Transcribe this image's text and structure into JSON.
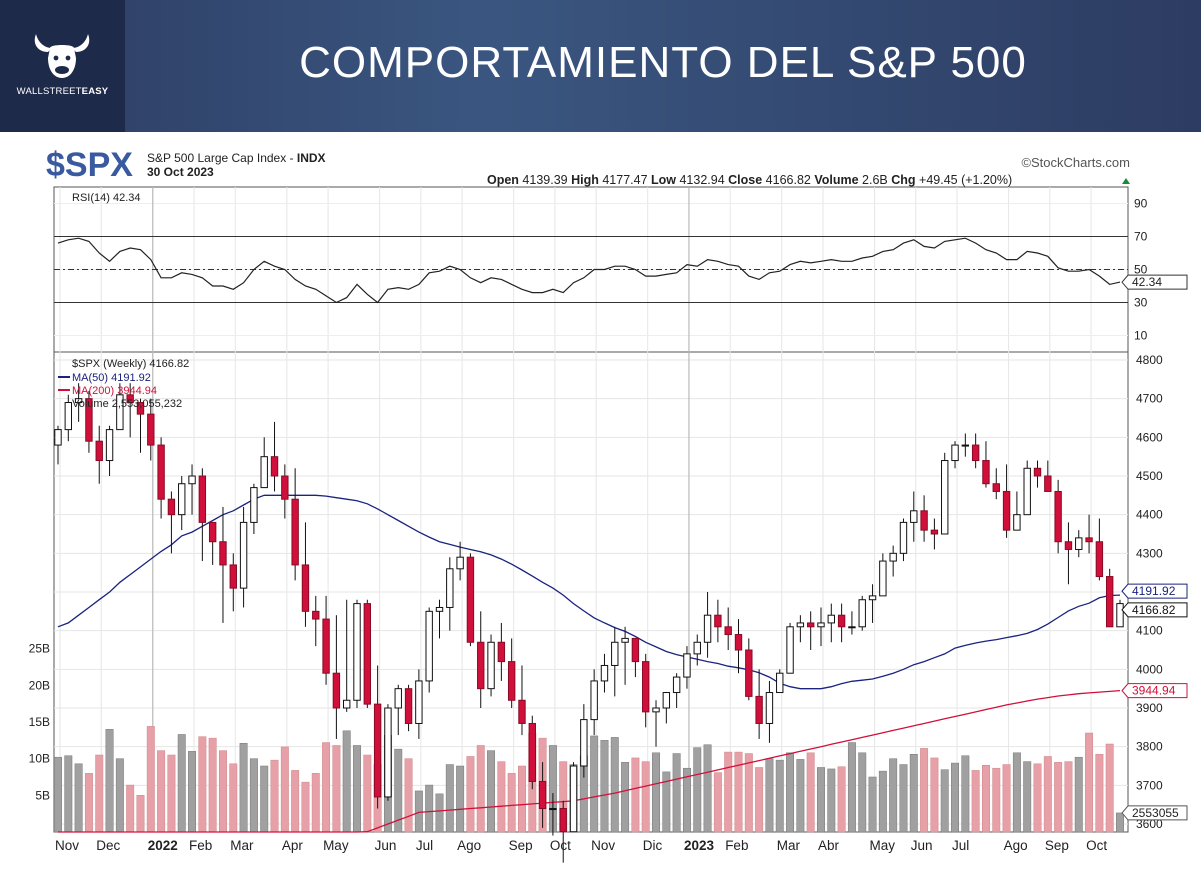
{
  "banner": {
    "title": "COMPORTAMIENTO DEL S&P 500",
    "logo_text_plain": "WALLSTREET",
    "logo_text_bold": "EASY",
    "logo_icon": "bull-head-icon"
  },
  "header": {
    "symbol": "$SPX",
    "name": "S&P 500 Large Cap Index",
    "exchange": "INDX",
    "date": "30 Oct 2023",
    "source": "©StockCharts.com",
    "ohlc_text": [
      {
        "label": "Open",
        "value": "4139.39"
      },
      {
        "label": "High",
        "value": "4177.47"
      },
      {
        "label": "Low",
        "value": "4132.94"
      },
      {
        "label": "Close",
        "value": "4166.82"
      },
      {
        "label": "Volume",
        "value": "2.6B"
      },
      {
        "label": "Chg",
        "value": "+49.45 (+1.20%)"
      }
    ],
    "change_arrow": "up-triangle-icon"
  },
  "legends": {
    "rsi": "RSI(14) 42.34",
    "price": "$SPX (Weekly) 4166.82",
    "ma50": "MA(50) 4191.92",
    "ma200": "MA(200) 3944.94",
    "volume": "Volume 2,553,055,232"
  },
  "axis_tags": {
    "rsi": "42.34",
    "ma50": "4191.92",
    "close": "4166.82",
    "ma200": "3944.94",
    "volume": "2553055"
  },
  "colors": {
    "up": "#ffffff",
    "down": "#d0103a",
    "ma50": "#1a237e",
    "ma200": "#d0103a",
    "vol_up": "#a0a0a0",
    "vol_down": "#e8a0a8",
    "banner": "#2d3c62"
  },
  "chart_data": {
    "type": "candlestick",
    "symbol": "$SPX",
    "timeframe": "Weekly",
    "x_labels": [
      "Nov",
      "Dec",
      "2022",
      "Feb",
      "Mar",
      "Apr",
      "May",
      "Jun",
      "Jul",
      "Ago",
      "Sep",
      "Oct",
      "Nov",
      "Dic",
      "2023",
      "Feb",
      "Mar",
      "Abr",
      "May",
      "Jun",
      "Jul",
      "Ago",
      "Sep",
      "Oct"
    ],
    "x_label_bold": [
      "2022",
      "2023"
    ],
    "price_ticks": [
      3600,
      3700,
      3800,
      3900,
      4000,
      4100,
      4200,
      4300,
      4400,
      4500,
      4600,
      4700,
      4800
    ],
    "price_ylim": [
      3600,
      4800
    ],
    "rsi_ticks": [
      10,
      30,
      50,
      70,
      90
    ],
    "rsi_ylim": [
      0,
      100
    ],
    "rsi_levels": [
      30,
      50,
      70
    ],
    "volume_ticks": [
      "5B",
      "10B",
      "15B",
      "20B",
      "25B"
    ],
    "volume_tick_values": [
      5,
      10,
      15,
      20,
      25
    ],
    "volume_unit": "B",
    "closes": [
      4620,
      4690,
      4700,
      4590,
      4540,
      4620,
      4710,
      4690,
      4660,
      4580,
      4440,
      4400,
      4480,
      4500,
      4380,
      4330,
      4270,
      4210,
      4380,
      4470,
      4550,
      4500,
      4440,
      4270,
      4150,
      4130,
      3990,
      3900,
      3920,
      4170,
      3910,
      3670,
      3900,
      3950,
      3860,
      3970,
      4150,
      4160,
      4260,
      4290,
      4070,
      3950,
      4070,
      4020,
      3920,
      3860,
      3710,
      3640,
      3640,
      3580,
      3750,
      3870,
      3970,
      4010,
      4070,
      4080,
      4020,
      3890,
      3900,
      3940,
      3980,
      4040,
      4070,
      4140,
      4110,
      4090,
      4050,
      3930,
      3860,
      3940,
      3990,
      4110,
      4120,
      4110,
      4120,
      4140,
      4110,
      4110,
      4180,
      4190,
      4280,
      4300,
      4380,
      4410,
      4360,
      4350,
      4540,
      4580,
      4580,
      4540,
      4480,
      4460,
      4360,
      4400,
      4520,
      4500,
      4460,
      4330,
      4310,
      4340,
      4330,
      4240,
      4110,
      4170
    ],
    "open_first": 4580,
    "highs": [
      4630,
      4710,
      4740,
      4720,
      4630,
      4630,
      4740,
      4740,
      4700,
      4700,
      4600,
      4460,
      4500,
      4530,
      4520,
      4380,
      4420,
      4300,
      4420,
      4480,
      4600,
      4640,
      4530,
      4520,
      4380,
      4190,
      4190,
      4140,
      4180,
      4180,
      4180,
      4010,
      3910,
      3960,
      3960,
      4000,
      4160,
      4180,
      4290,
      4330,
      4300,
      4150,
      4090,
      4120,
      4080,
      4010,
      3880,
      3760,
      3680,
      3660,
      3760,
      3910,
      4000,
      4040,
      4110,
      4110,
      4070,
      4040,
      3920,
      3940,
      3990,
      4060,
      4090,
      4200,
      4180,
      4160,
      4130,
      4080,
      4000,
      3970,
      4000,
      4120,
      4140,
      4150,
      4160,
      4170,
      4170,
      4150,
      4190,
      4220,
      4300,
      4320,
      4390,
      4460,
      4450,
      4390,
      4560,
      4590,
      4610,
      4610,
      4590,
      4520,
      4530,
      4460,
      4540,
      4540,
      4540,
      4490,
      4380,
      4360,
      4400,
      4390,
      4260,
      4180
    ],
    "lows": [
      4530,
      4590,
      4640,
      4560,
      4480,
      4500,
      4620,
      4600,
      4560,
      4540,
      4390,
      4300,
      4360,
      4400,
      4280,
      4270,
      4120,
      4150,
      4160,
      4350,
      4520,
      4460,
      4390,
      4230,
      4110,
      4060,
      3960,
      3820,
      3890,
      3900,
      3900,
      3640,
      3660,
      3830,
      3840,
      3820,
      3940,
      4080,
      4100,
      4230,
      4060,
      3900,
      3930,
      3970,
      3900,
      3830,
      3690,
      3590,
      3570,
      3500,
      3600,
      3720,
      3830,
      3940,
      3930,
      3960,
      3980,
      3850,
      3800,
      3860,
      3900,
      3950,
      4010,
      4030,
      4070,
      4050,
      3990,
      3920,
      3820,
      3810,
      3940,
      3990,
      4070,
      4050,
      4060,
      4070,
      4070,
      4090,
      4100,
      4120,
      4200,
      4240,
      4280,
      4330,
      4330,
      4310,
      4380,
      4520,
      4550,
      4520,
      4470,
      4440,
      4340,
      4370,
      4400,
      4470,
      4460,
      4300,
      4220,
      4290,
      4300,
      4230,
      4110,
      4130
    ],
    "volumes": [
      10.2,
      10.4,
      9.3,
      8.0,
      10.5,
      14.0,
      10.0,
      6.4,
      5.0,
      14.4,
      11.1,
      10.5,
      13.3,
      11.0,
      13.0,
      12.8,
      11.1,
      9.3,
      12.1,
      10.0,
      9.0,
      9.8,
      11.6,
      8.4,
      6.8,
      8.0,
      12.2,
      11.8,
      13.8,
      11.8,
      10.5,
      9.2,
      13.2,
      11.3,
      10.0,
      5.6,
      6.4,
      5.2,
      9.2,
      9.0,
      10.3,
      11.8,
      11.1,
      9.6,
      8.0,
      9.0,
      13.5,
      12.8,
      11.8,
      9.6,
      9.2,
      10.4,
      13.1,
      12.5,
      12.9,
      9.5,
      10.1,
      9.6,
      10.8,
      8.2,
      10.7,
      8.7,
      11.5,
      11.9,
      8.1,
      10.9,
      10.9,
      10.7,
      8.8,
      10.0,
      9.8,
      10.8,
      9.9,
      10.8,
      8.8,
      8.6,
      8.9,
      12.2,
      10.8,
      7.5,
      8.3,
      10.0,
      9.2,
      10.6,
      11.4,
      10.1,
      8.5,
      9.4,
      10.4,
      8.4,
      9.1,
      8.7,
      9.2,
      10.8,
      9.6,
      9.3,
      10.3,
      9.5,
      9.6,
      10.2,
      13.5,
      10.6,
      12.0,
      2.6
    ],
    "vol_ylim": [
      0,
      30
    ],
    "rsi": [
      66,
      68,
      69,
      67,
      60,
      55,
      61,
      63,
      62,
      56,
      45,
      45,
      48,
      47,
      45,
      40,
      40,
      38,
      42,
      50,
      55,
      52,
      50,
      44,
      40,
      38,
      34,
      30,
      33,
      41,
      35,
      30,
      38,
      39,
      38,
      41,
      48,
      49,
      52,
      50,
      45,
      42,
      45,
      44,
      41,
      38,
      36,
      36,
      38,
      36,
      42,
      45,
      50,
      50,
      52,
      52,
      50,
      46,
      46,
      47,
      48,
      53,
      52,
      56,
      55,
      53,
      52,
      46,
      44,
      48,
      49,
      53,
      55,
      54,
      55,
      56,
      55,
      55,
      57,
      58,
      61,
      62,
      66,
      68,
      64,
      63,
      67,
      68,
      69,
      66,
      62,
      60,
      56,
      56,
      61,
      60,
      58,
      51,
      49,
      49,
      50,
      46,
      41,
      42.34
    ],
    "ma50": [
      4110,
      4120,
      4140,
      4160,
      4180,
      4200,
      4225,
      4245,
      4265,
      4285,
      4305,
      4322,
      4345,
      4355,
      4370,
      4385,
      4400,
      4410,
      4425,
      4440,
      4450,
      4450,
      4450,
      4450,
      4450,
      4450,
      4448,
      4444,
      4440,
      4436,
      4428,
      4415,
      4400,
      4385,
      4370,
      4355,
      4342,
      4330,
      4323,
      4316,
      4310,
      4304,
      4296,
      4285,
      4272,
      4257,
      4241,
      4225,
      4210,
      4192,
      4170,
      4151,
      4133,
      4120,
      4108,
      4098,
      4085,
      4070,
      4058,
      4046,
      4038,
      4032,
      4026,
      4020,
      4015,
      4008,
      4004,
      3999,
      3991,
      3980,
      3964,
      3955,
      3950,
      3950,
      3950,
      3955,
      3963,
      3969,
      3972,
      3975,
      3982,
      3990,
      4000,
      4012,
      4020,
      4030,
      4040,
      4055,
      4062,
      4068,
      4073,
      4077,
      4082,
      4087,
      4093,
      4103,
      4117,
      4134,
      4151,
      4163,
      4171,
      4185,
      4191,
      4191.92
    ],
    "ma200_start": 3280,
    "ma200_end": 3944.94,
    "ma200": [
      3280,
      3290,
      3300,
      3310,
      3320,
      3330,
      3340,
      3350,
      3360,
      3370,
      3380,
      3390,
      3400,
      3410,
      3420,
      3430,
      3440,
      3450,
      3460,
      3470,
      3480,
      3490,
      3500,
      3510,
      3520,
      3530,
      3540,
      3550,
      3560,
      3570,
      3580,
      3590,
      3600,
      3610,
      3620,
      3630,
      3632,
      3634,
      3636,
      3638,
      3640,
      3642,
      3644,
      3646,
      3648,
      3650,
      3652,
      3654,
      3656,
      3658,
      3660,
      3665,
      3670,
      3675,
      3680,
      3686,
      3692,
      3698,
      3704,
      3710,
      3716,
      3722,
      3728,
      3734,
      3740,
      3746,
      3752,
      3758,
      3764,
      3770,
      3776,
      3782,
      3788,
      3794,
      3800,
      3806,
      3812,
      3818,
      3824,
      3830,
      3836,
      3842,
      3848,
      3854,
      3860,
      3866,
      3872,
      3878,
      3884,
      3890,
      3896,
      3902,
      3908,
      3913,
      3918,
      3923,
      3927,
      3931,
      3934,
      3937,
      3939,
      3941,
      3943,
      3944.94
    ]
  }
}
